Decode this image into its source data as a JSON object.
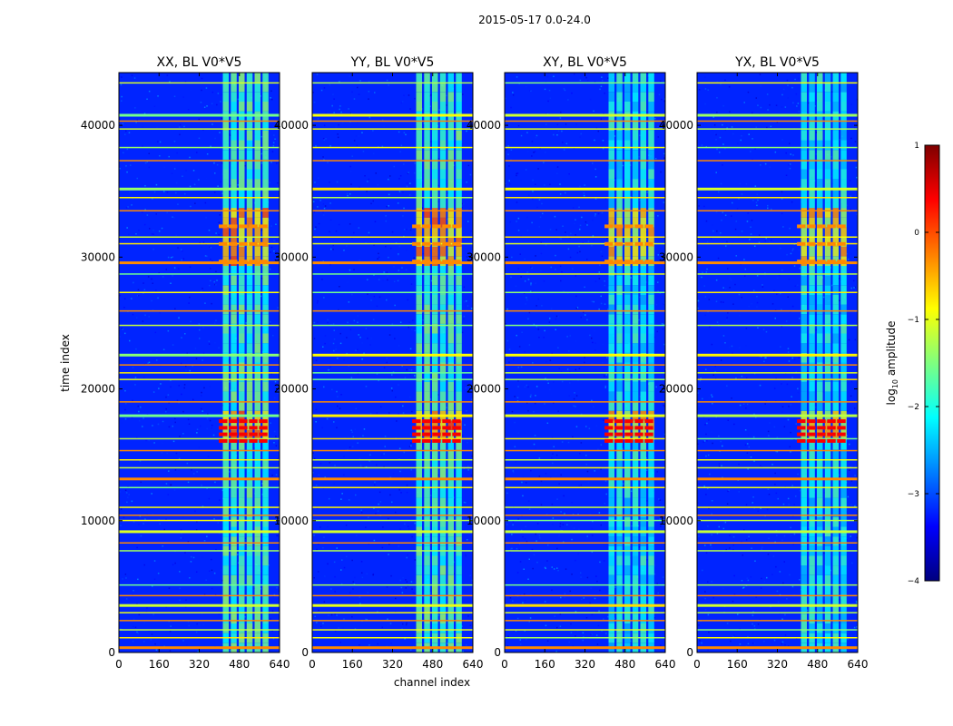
{
  "figure": {
    "suptitle": "2015-05-17 0.0-24.0",
    "xlabel": "channel index",
    "ylabel": "time index"
  },
  "chart_data": {
    "type": "heatmap",
    "title": "2015-05-17 0.0-24.0",
    "xlabel": "channel index",
    "ylabel": "time index",
    "xlim": [
      0,
      640
    ],
    "ylim": [
      0,
      44000
    ],
    "xticks": [
      0,
      160,
      320,
      480,
      640
    ],
    "yticks": [
      0,
      10000,
      20000,
      30000,
      40000
    ],
    "panels": [
      {
        "name": "XX",
        "title": "XX, BL V0*V5"
      },
      {
        "name": "YY",
        "title": "YY, BL V0*V5"
      },
      {
        "name": "XY",
        "title": "XY, BL V0*V5"
      },
      {
        "name": "YX",
        "title": "YX, BL V0*V5"
      }
    ],
    "colorbar": {
      "label": "log10 amplitude",
      "label_main": "log",
      "label_sub": "10",
      "label_rest": " amplitude",
      "range": [
        -4,
        1
      ],
      "ticks": [
        1,
        0,
        -1,
        -2,
        -3,
        -4
      ],
      "tick_labels": [
        "1",
        "0",
        "−1",
        "−2",
        "−3",
        "−4"
      ],
      "colormap": [
        "#00007f",
        "#0000ff",
        "#007fff",
        "#00ffff",
        "#7fff7f",
        "#ffff00",
        "#ff7f00",
        "#ff0000",
        "#7f0000"
      ]
    },
    "features": {
      "background_level": -3.2,
      "band_channels": [
        [
          410,
          600
        ]
      ],
      "strong_band_channels": [
        [
          395,
          595
        ]
      ],
      "horizontal_rfi_times": [
        400,
        1100,
        1700,
        2400,
        3000,
        3600,
        4300,
        5100,
        7700,
        8300,
        9200,
        10000,
        10400,
        11000,
        12500,
        13200,
        14000,
        14600,
        15300,
        16200,
        18000,
        19000,
        20700,
        21200,
        21800,
        22600,
        24800,
        25900,
        27300,
        28700,
        29600,
        31000,
        31500,
        33500,
        34500,
        35200,
        37300,
        38300,
        39700,
        40300,
        40800,
        43200
      ],
      "burst_times": [
        [
          15800,
          17800
        ],
        [
          29000,
          33000
        ]
      ]
    }
  }
}
